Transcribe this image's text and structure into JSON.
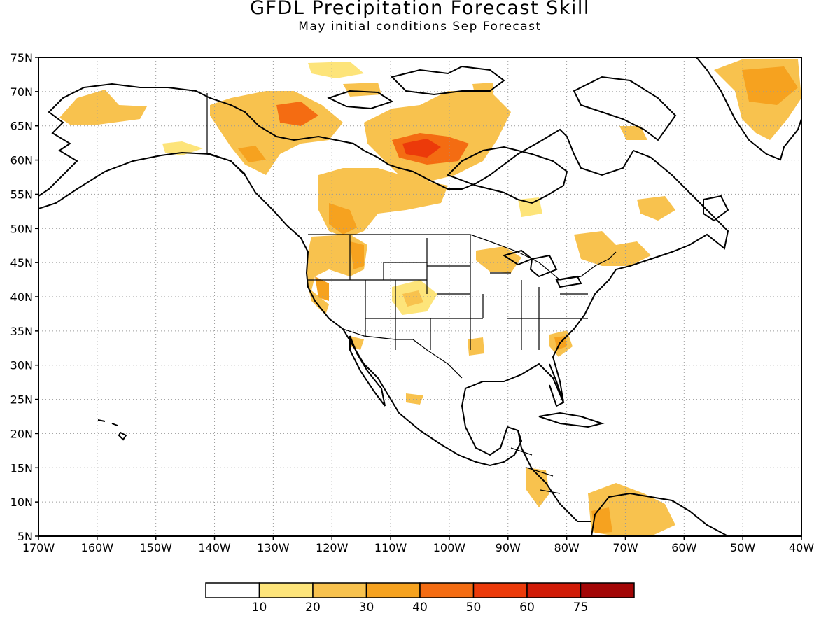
{
  "title": "GFDL Precipitation Forecast Skill",
  "subtitle": "May initial conditions  Sep Forecast",
  "lat_labels": [
    "75N",
    "70N",
    "65N",
    "60N",
    "55N",
    "50N",
    "45N",
    "40N",
    "35N",
    "30N",
    "25N",
    "20N",
    "15N",
    "10N",
    "5N"
  ],
  "lon_labels": [
    "170W",
    "160W",
    "150W",
    "140W",
    "130W",
    "120W",
    "110W",
    "100W",
    "90W",
    "80W",
    "70W",
    "60W",
    "50W",
    "40W"
  ],
  "colorbar": {
    "labels": [
      "10",
      "20",
      "30",
      "40",
      "50",
      "60",
      "75"
    ],
    "colors": [
      "#ffffff",
      "#fde47a",
      "#f8c24e",
      "#f6a21f",
      "#f46c12",
      "#ec3a0a",
      "#d11b07",
      "#a30606"
    ]
  },
  "chart_data": {
    "type": "heatmap",
    "region": "North America",
    "xlim": [
      "170W",
      "40W"
    ],
    "ylim": [
      "5N",
      "75N"
    ],
    "grid": true,
    "levels": [
      10,
      20,
      30,
      40,
      50,
      60,
      75
    ],
    "skill_regions": [
      {
        "area": "western Alaska",
        "lon": -157,
        "lat": 67,
        "level": 20
      },
      {
        "area": "northwest Canada / Mackenzie",
        "lon": -125,
        "lat": 65,
        "level": 40
      },
      {
        "area": "Hudson Bay west coast",
        "lon": -100,
        "lat": 62,
        "level": 50
      },
      {
        "area": "northern Quebec / Baffin",
        "lon": -95,
        "lat": 66,
        "level": 30
      },
      {
        "area": "Alberta / British Columbia",
        "lon": -118,
        "lat": 54,
        "level": 30
      },
      {
        "area": "Pacific Northwest",
        "lon": -118,
        "lat": 46,
        "level": 30
      },
      {
        "area": "California",
        "lon": -121,
        "lat": 40,
        "level": 30
      },
      {
        "area": "Colorado Plateau",
        "lon": -107,
        "lat": 40,
        "level": 20
      },
      {
        "area": "Upper Midwest",
        "lon": -93,
        "lat": 45,
        "level": 30
      },
      {
        "area": "Great Lakes / St. Lawrence",
        "lon": -77,
        "lat": 46,
        "level": 30
      },
      {
        "area": "Labrador",
        "lon": -64,
        "lat": 52,
        "level": 20
      },
      {
        "area": "Southeast US",
        "lon": -81,
        "lat": 33,
        "level": 30
      },
      {
        "area": "Texas Gulf coast",
        "lon": -96,
        "lat": 31,
        "level": 20
      },
      {
        "area": "Central America",
        "lon": -84,
        "lat": 11,
        "level": 30
      },
      {
        "area": "northern South America",
        "lon": -72,
        "lat": 7,
        "level": 30
      },
      {
        "area": "Greenland",
        "lon": -42,
        "lat": 70,
        "level": 30
      }
    ]
  }
}
